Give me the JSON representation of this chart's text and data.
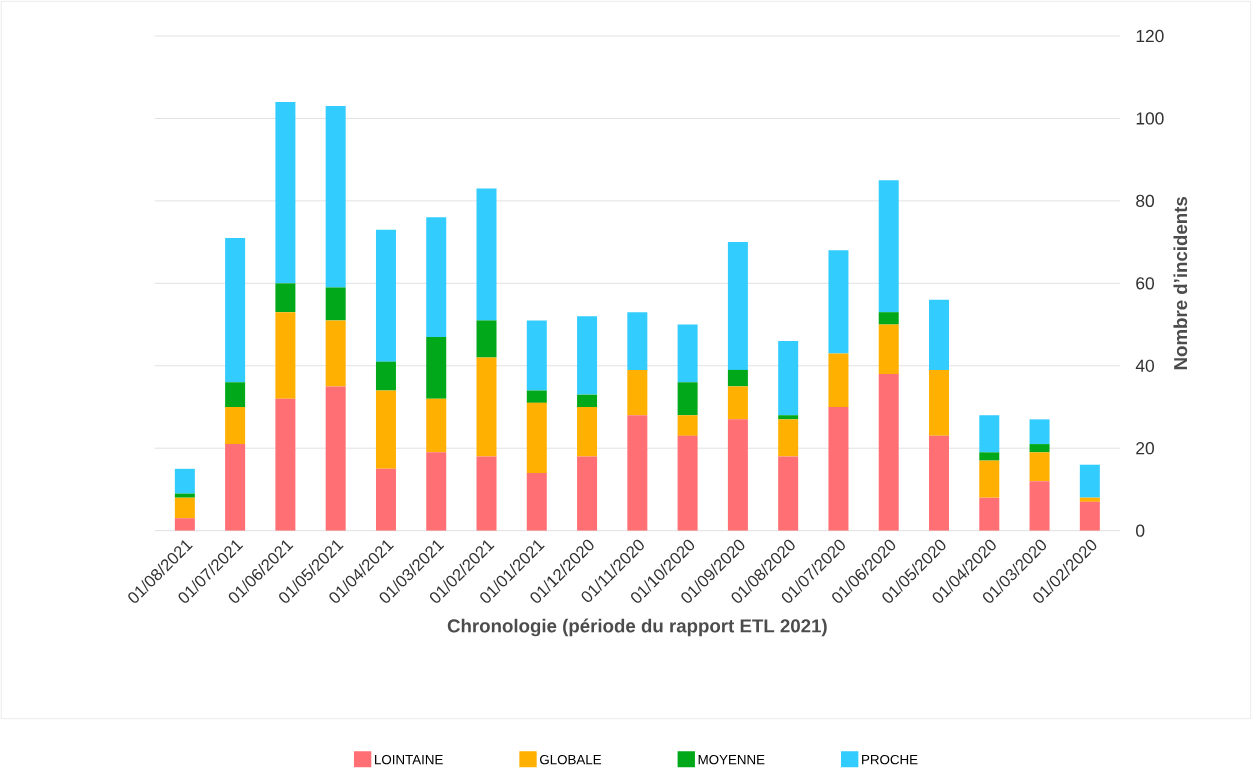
{
  "chart_data": {
    "type": "bar",
    "stacked": true,
    "xlabel": "Chronologie (période du rapport ETL 2021)",
    "ylabel": "Nombre d’incidents",
    "categories": [
      "01/08/2021",
      "01/07/2021",
      "01/06/2021",
      "01/05/2021",
      "01/04/2021",
      "01/03/2021",
      "01/02/2021",
      "01/01/2021",
      "01/12/2020",
      "01/11/2020",
      "01/10/2020",
      "01/09/2020",
      "01/08/2020",
      "01/07/2020",
      "01/06/2020",
      "01/05/2020",
      "01/04/2020",
      "01/03/2020",
      "01/02/2020"
    ],
    "series": [
      {
        "name": "LOINTAINE",
        "color": "#ff6f73",
        "values": [
          3,
          21,
          32,
          35,
          15,
          19,
          18,
          14,
          18,
          28,
          23,
          27,
          18,
          30,
          38,
          23,
          8,
          12,
          7
        ]
      },
      {
        "name": "GLOBALE",
        "color": "#ffb000",
        "values": [
          5,
          9,
          21,
          16,
          19,
          13,
          24,
          17,
          12,
          11,
          5,
          8,
          9,
          13,
          12,
          16,
          9,
          7,
          1
        ]
      },
      {
        "name": "MOYENNE",
        "color": "#00a81a",
        "values": [
          1,
          6,
          7,
          8,
          7,
          15,
          9,
          3,
          3,
          0,
          8,
          4,
          1,
          0,
          3,
          0,
          2,
          2,
          0
        ]
      },
      {
        "name": "PROCHE",
        "color": "#33ccff",
        "values": [
          6,
          35,
          44,
          44,
          32,
          29,
          32,
          17,
          19,
          14,
          14,
          31,
          18,
          25,
          32,
          17,
          9,
          6,
          8
        ]
      }
    ],
    "ylim": [
      0,
      120
    ],
    "yticks": [
      0,
      20,
      40,
      60,
      80,
      100,
      120
    ],
    "grid": "y",
    "legend": "bottom"
  }
}
